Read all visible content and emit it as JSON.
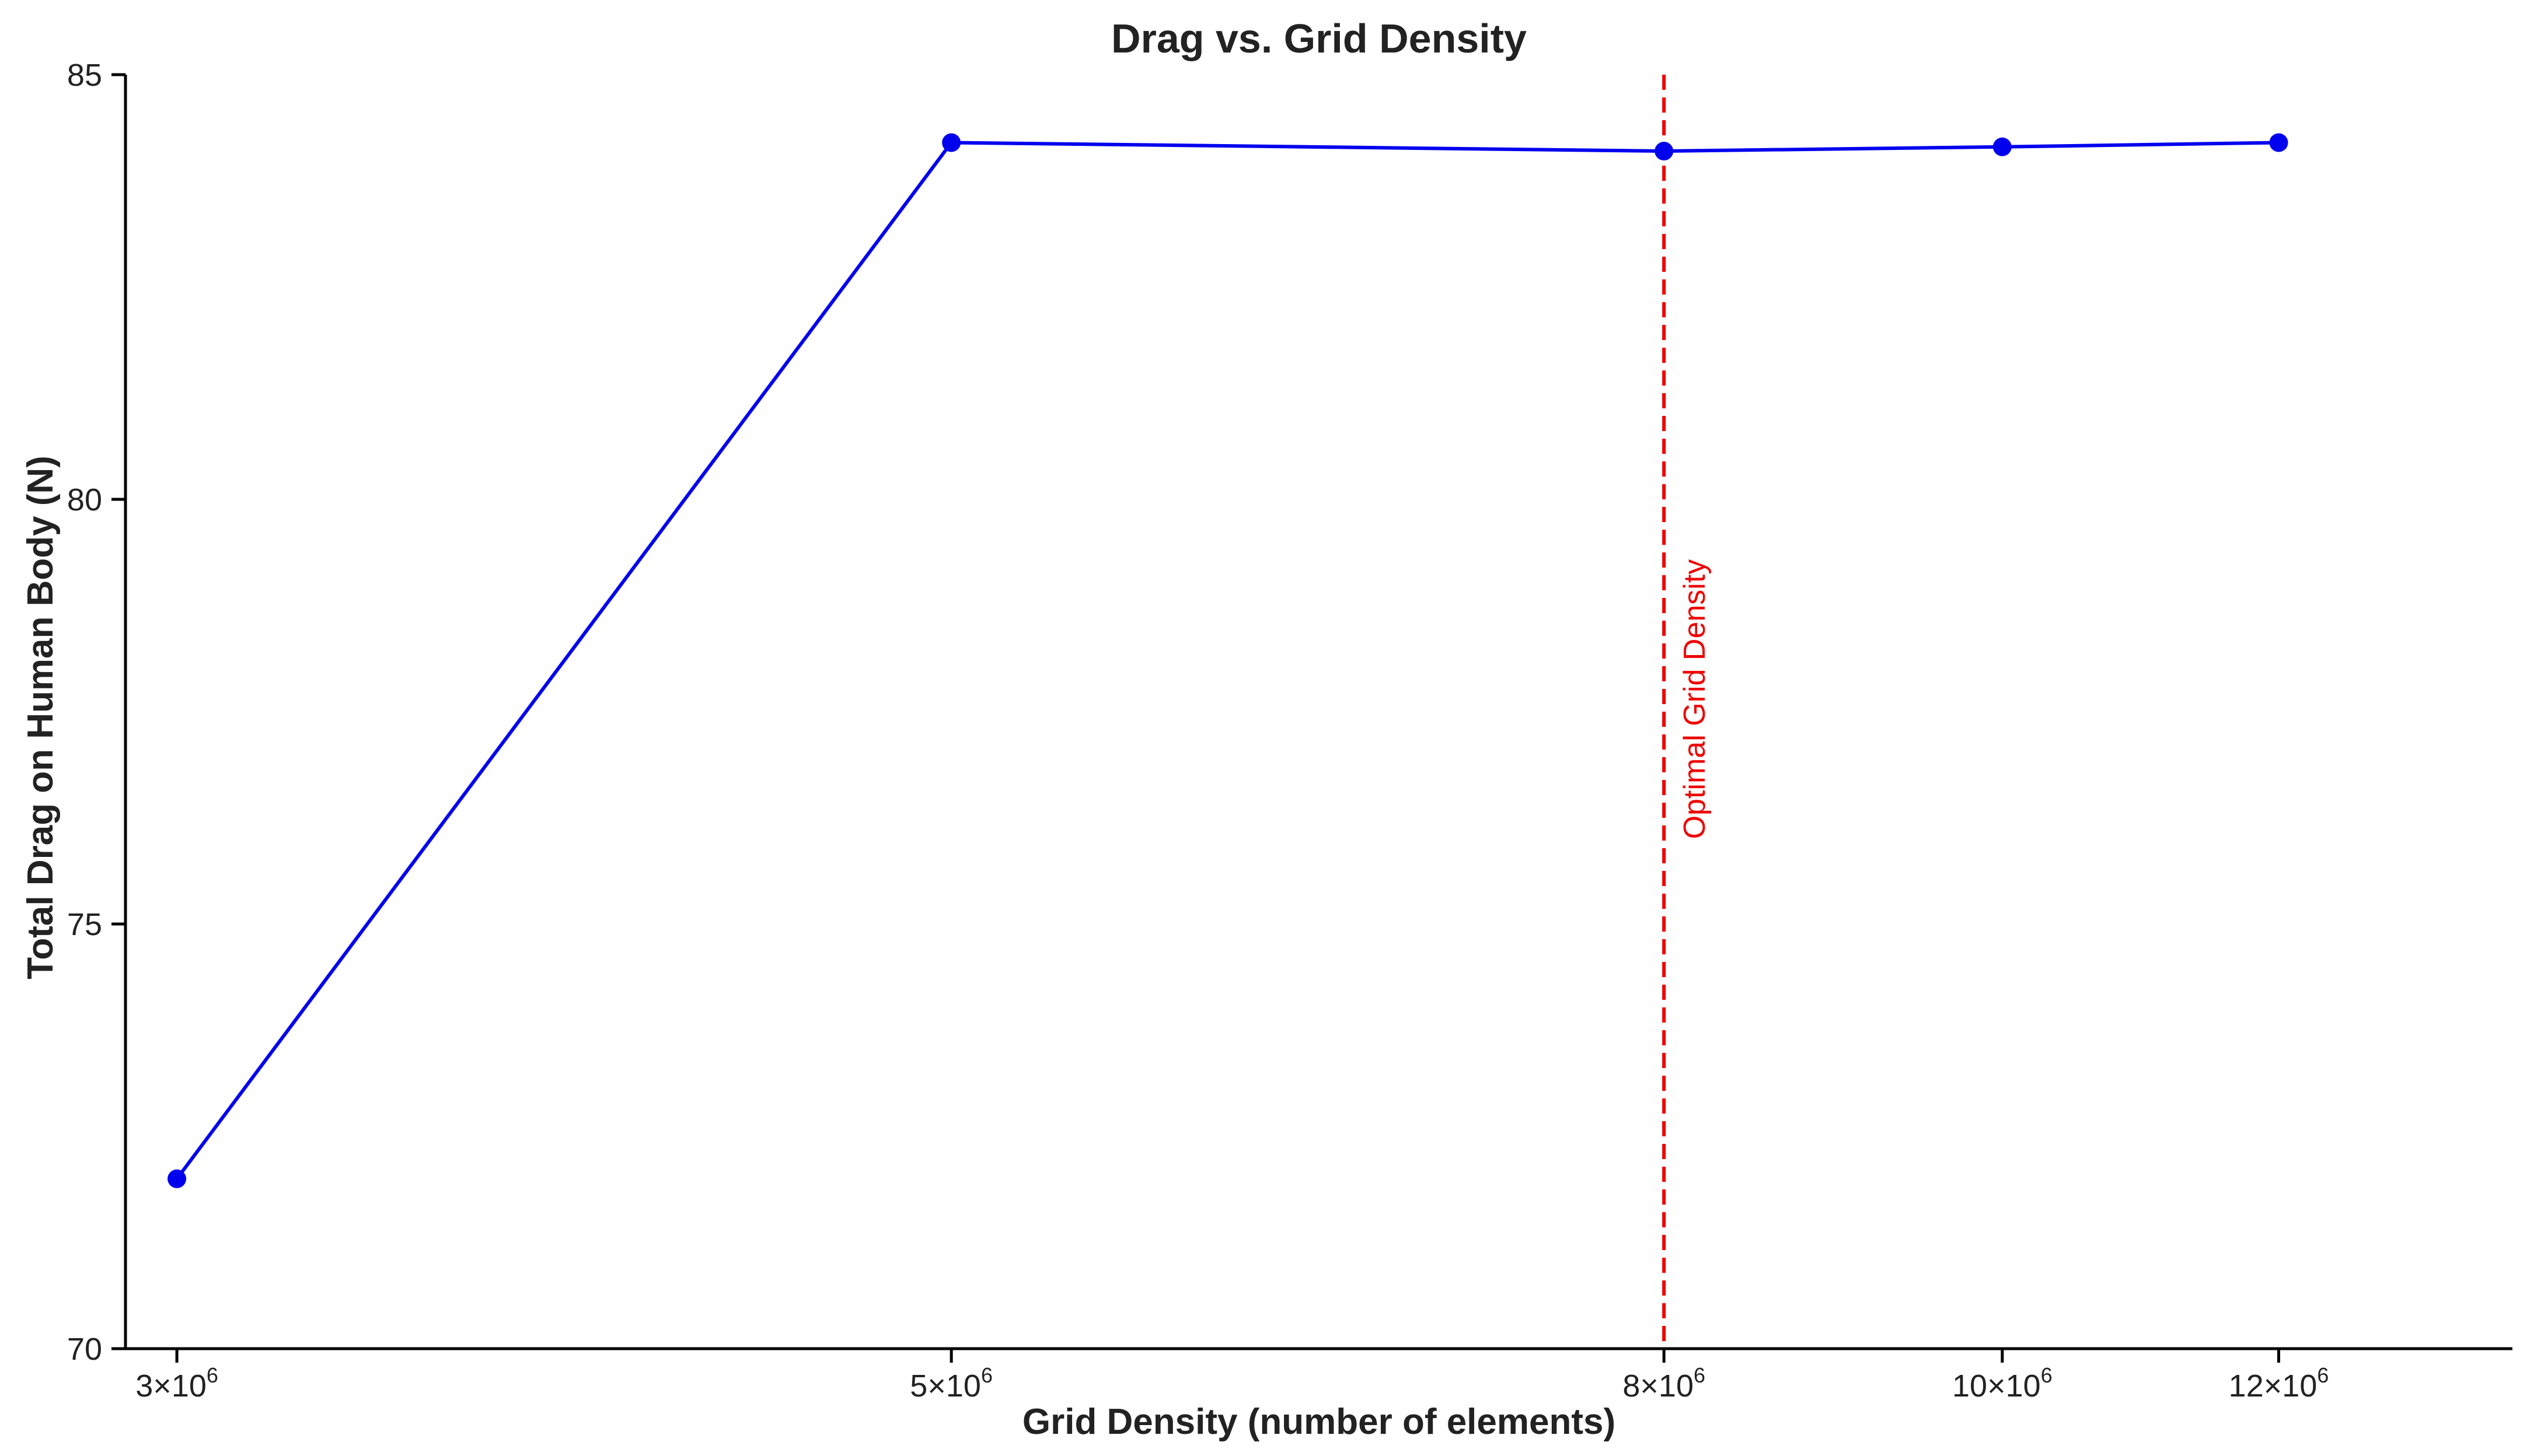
{
  "chart_data": {
    "type": "line",
    "title": "Drag vs. Grid Density",
    "xlabel": "Grid Density (number of elements)",
    "ylabel": "Total Drag on Human Body (N)",
    "xscale": "log",
    "xlim": [
      2900000,
      14000000
    ],
    "ylim": [
      70,
      85
    ],
    "grid": false,
    "x": [
      3000000,
      5000000,
      8000000,
      10000000,
      12000000
    ],
    "series": [
      {
        "name": "Total Drag",
        "color": "#0000ee",
        "values": [
          72.0,
          84.2,
          84.1,
          84.15,
          84.2
        ]
      }
    ],
    "xticks": [
      {
        "value": 3000000,
        "mantissa": "3",
        "base": "10",
        "exp": "6"
      },
      {
        "value": 5000000,
        "mantissa": "5",
        "base": "10",
        "exp": "6"
      },
      {
        "value": 8000000,
        "mantissa": "8",
        "base": "10",
        "exp": "6"
      },
      {
        "value": 10000000,
        "mantissa": "10",
        "base": "10",
        "exp": "6"
      },
      {
        "value": 12000000,
        "mantissa": "12",
        "base": "10",
        "exp": "6"
      }
    ],
    "yticks": [
      {
        "value": 70,
        "label": "70"
      },
      {
        "value": 75,
        "label": "75"
      },
      {
        "value": 80,
        "label": "80"
      },
      {
        "value": 85,
        "label": "85"
      }
    ],
    "annotations": [
      {
        "type": "vline",
        "x": 8000000,
        "color": "#ee0000",
        "style": "dashed",
        "label": "Optimal Grid Density",
        "label_y": 76
      }
    ]
  }
}
